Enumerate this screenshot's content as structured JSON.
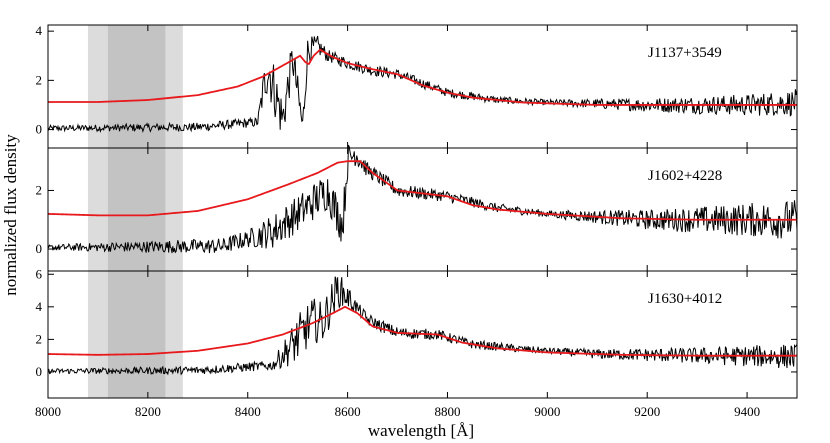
{
  "chart_data": {
    "type": "line",
    "xlabel": "wavelength [Å]",
    "ylabel": "normalized flux density",
    "xlim": [
      8000,
      9500
    ],
    "x_ticks": [
      8000,
      8200,
      8400,
      8600,
      8800,
      9000,
      9200,
      9400
    ],
    "shaded_bands": [
      {
        "x": [
          8080,
          8270
        ],
        "color": "#dcdcdc"
      },
      {
        "x": [
          8120,
          8235
        ],
        "color": "#c3c3c3"
      }
    ],
    "colors": {
      "observed": "#000000",
      "model": "#e8191c"
    },
    "panels": [
      {
        "quasar": "J1137+3549",
        "ylim": [
          -0.75,
          4.25
        ],
        "y_ticks": [
          0,
          2,
          4
        ],
        "model": [
          [
            8000,
            1.12
          ],
          [
            8100,
            1.12
          ],
          [
            8200,
            1.2
          ],
          [
            8300,
            1.4
          ],
          [
            8380,
            1.75
          ],
          [
            8430,
            2.15
          ],
          [
            8470,
            2.6
          ],
          [
            8505,
            3.0
          ],
          [
            8515,
            2.75
          ],
          [
            8522,
            2.65
          ],
          [
            8532,
            3.0
          ],
          [
            8545,
            3.25
          ],
          [
            8570,
            2.95
          ],
          [
            8600,
            2.7
          ],
          [
            8650,
            2.45
          ],
          [
            8700,
            2.25
          ],
          [
            8750,
            1.8
          ],
          [
            8800,
            1.5
          ],
          [
            8850,
            1.3
          ],
          [
            8950,
            1.1
          ],
          [
            9100,
            1.0
          ],
          [
            9300,
            1.0
          ],
          [
            9500,
            1.0
          ]
        ],
        "observed_anchors": [
          [
            8000,
            0.05
          ],
          [
            8300,
            0.1
          ],
          [
            8420,
            0.3
          ],
          [
            8440,
            2.6
          ],
          [
            8470,
            0.4
          ],
          [
            8490,
            2.9
          ],
          [
            8510,
            0.1
          ],
          [
            8520,
            3.2
          ],
          [
            8540,
            3.4
          ],
          [
            8560,
            3.0
          ],
          [
            8600,
            2.7
          ],
          [
            8650,
            2.4
          ],
          [
            8700,
            2.25
          ],
          [
            8760,
            1.8
          ],
          [
            8800,
            1.5
          ],
          [
            8900,
            1.2
          ],
          [
            9000,
            1.1
          ],
          [
            9200,
            1.0
          ],
          [
            9400,
            1.0
          ],
          [
            9500,
            1.1
          ]
        ],
        "observed_noise": [
          [
            8000,
            0.12
          ],
          [
            8420,
            0.2
          ],
          [
            8440,
            1.2
          ],
          [
            8530,
            0.5
          ],
          [
            8560,
            0.25
          ],
          [
            9000,
            0.12
          ],
          [
            9350,
            0.4
          ],
          [
            9500,
            0.55
          ]
        ]
      },
      {
        "quasar": "J1602+4228",
        "ylim": [
          -0.75,
          3.45
        ],
        "y_ticks": [
          0,
          2
        ],
        "model": [
          [
            8000,
            1.2
          ],
          [
            8100,
            1.15
          ],
          [
            8200,
            1.15
          ],
          [
            8300,
            1.3
          ],
          [
            8400,
            1.7
          ],
          [
            8480,
            2.2
          ],
          [
            8540,
            2.6
          ],
          [
            8580,
            2.95
          ],
          [
            8600,
            3.0
          ],
          [
            8625,
            3.0
          ],
          [
            8650,
            2.6
          ],
          [
            8700,
            2.0
          ],
          [
            8750,
            1.9
          ],
          [
            8800,
            1.8
          ],
          [
            8850,
            1.5
          ],
          [
            8900,
            1.35
          ],
          [
            9000,
            1.2
          ],
          [
            9150,
            1.05
          ],
          [
            9300,
            1.0
          ],
          [
            9500,
            1.0
          ]
        ],
        "observed_anchors": [
          [
            8000,
            0.05
          ],
          [
            8350,
            0.1
          ],
          [
            8450,
            0.6
          ],
          [
            8500,
            1.2
          ],
          [
            8560,
            2.0
          ],
          [
            8590,
            0.8
          ],
          [
            8600,
            3.0
          ],
          [
            8615,
            3.3
          ],
          [
            8640,
            2.7
          ],
          [
            8700,
            2.0
          ],
          [
            8750,
            1.9
          ],
          [
            8800,
            1.8
          ],
          [
            8900,
            1.4
          ],
          [
            9000,
            1.2
          ],
          [
            9200,
            1.0
          ],
          [
            9400,
            1.0
          ],
          [
            9500,
            1.0
          ]
        ],
        "observed_noise": [
          [
            8000,
            0.1
          ],
          [
            8400,
            0.3
          ],
          [
            8450,
            0.6
          ],
          [
            8590,
            0.7
          ],
          [
            8640,
            0.25
          ],
          [
            9000,
            0.12
          ],
          [
            9300,
            0.45
          ],
          [
            9500,
            0.7
          ]
        ]
      },
      {
        "quasar": "J1630+4012",
        "ylim": [
          -1.6,
          6.2
        ],
        "y_ticks": [
          0,
          2,
          4,
          6
        ],
        "model": [
          [
            8000,
            1.1
          ],
          [
            8100,
            1.05
          ],
          [
            8200,
            1.1
          ],
          [
            8300,
            1.3
          ],
          [
            8400,
            1.75
          ],
          [
            8470,
            2.3
          ],
          [
            8530,
            3.0
          ],
          [
            8570,
            3.6
          ],
          [
            8595,
            4.0
          ],
          [
            8620,
            3.6
          ],
          [
            8650,
            2.8
          ],
          [
            8700,
            2.4
          ],
          [
            8780,
            2.3
          ],
          [
            8830,
            1.8
          ],
          [
            8900,
            1.45
          ],
          [
            9000,
            1.2
          ],
          [
            9150,
            1.05
          ],
          [
            9300,
            1.0
          ],
          [
            9500,
            1.0
          ]
        ],
        "observed_anchors": [
          [
            8000,
            0.05
          ],
          [
            8300,
            0.1
          ],
          [
            8450,
            0.4
          ],
          [
            8500,
            2.0
          ],
          [
            8530,
            3.2
          ],
          [
            8550,
            3.0
          ],
          [
            8580,
            5.1
          ],
          [
            8600,
            4.6
          ],
          [
            8640,
            3.2
          ],
          [
            8700,
            2.4
          ],
          [
            8780,
            2.3
          ],
          [
            8850,
            1.7
          ],
          [
            8950,
            1.4
          ],
          [
            9100,
            1.1
          ],
          [
            9300,
            1.0
          ],
          [
            9500,
            0.95
          ]
        ],
        "observed_noise": [
          [
            8000,
            0.15
          ],
          [
            8450,
            0.3
          ],
          [
            8500,
            1.5
          ],
          [
            8575,
            1.2
          ],
          [
            8620,
            0.4
          ],
          [
            9000,
            0.2
          ],
          [
            9300,
            0.5
          ],
          [
            9500,
            0.8
          ]
        ]
      }
    ]
  }
}
